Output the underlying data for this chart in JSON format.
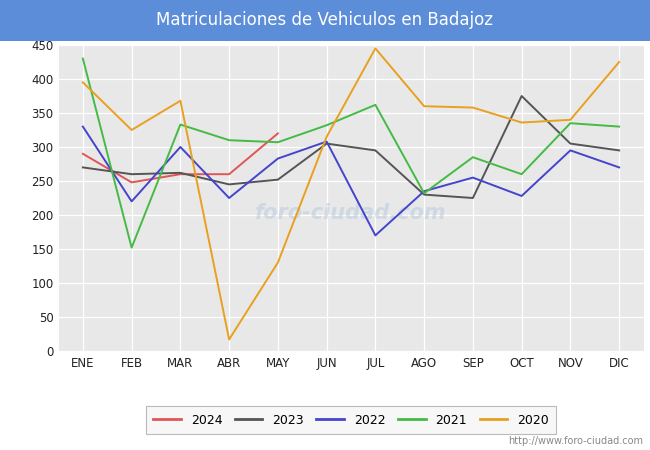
{
  "title": "Matriculaciones de Vehiculos en Badajoz",
  "title_bg_color": "#5b8dd9",
  "title_text_color": "#ffffff",
  "months": [
    "ENE",
    "FEB",
    "MAR",
    "ABR",
    "MAY",
    "JUN",
    "JUL",
    "AGO",
    "SEP",
    "OCT",
    "NOV",
    "DIC"
  ],
  "series": {
    "2024": {
      "color": "#e05555",
      "data": [
        290,
        248,
        260,
        260,
        320,
        null,
        null,
        null,
        null,
        null,
        null,
        null
      ]
    },
    "2023": {
      "color": "#555555",
      "data": [
        270,
        260,
        262,
        245,
        252,
        305,
        295,
        230,
        225,
        375,
        305,
        295
      ]
    },
    "2022": {
      "color": "#4444cc",
      "data": [
        330,
        220,
        300,
        225,
        283,
        308,
        170,
        235,
        255,
        228,
        295,
        270
      ]
    },
    "2021": {
      "color": "#44bb44",
      "data": [
        430,
        152,
        333,
        310,
        307,
        332,
        362,
        232,
        285,
        260,
        335,
        330
      ]
    },
    "2020": {
      "color": "#e8a020",
      "data": [
        395,
        325,
        368,
        17,
        130,
        315,
        445,
        360,
        358,
        336,
        340,
        425
      ]
    }
  },
  "ylim": [
    0,
    450
  ],
  "yticks": [
    0,
    50,
    100,
    150,
    200,
    250,
    300,
    350,
    400,
    450
  ],
  "plot_bg_color": "#e8e8e8",
  "grid_color": "#ffffff",
  "url": "http://www.foro-ciudad.com",
  "legend_order": [
    "2024",
    "2023",
    "2022",
    "2021",
    "2020"
  ],
  "fig_bg_color": "#ffffff"
}
